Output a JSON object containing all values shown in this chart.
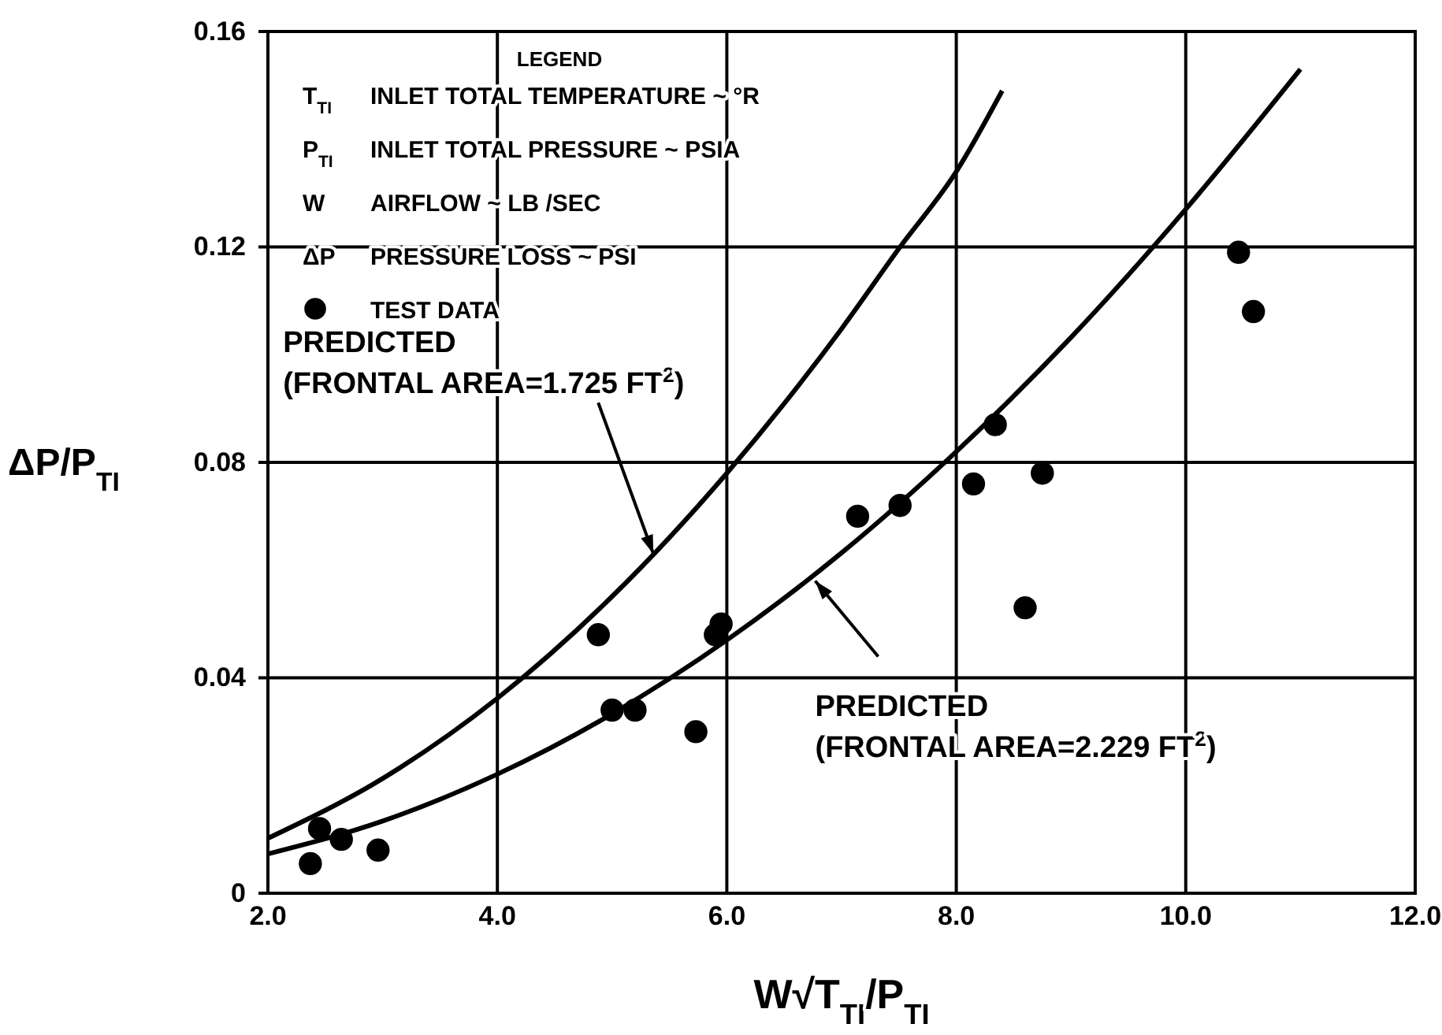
{
  "chart_data": {
    "type": "scatter",
    "xlabel": "W√T$_{TI}$/P$_{TI}$",
    "ylabel": "ΔP/P$_{TI}$",
    "legend_title": "LEGEND",
    "xlim": [
      2.0,
      12.0
    ],
    "ylim": [
      0,
      0.16
    ],
    "xticks": [
      {
        "value": 2,
        "label": "2.0"
      },
      {
        "value": 4,
        "label": "4.0"
      },
      {
        "value": 6,
        "label": "6.0"
      },
      {
        "value": 8,
        "label": "8.0"
      },
      {
        "value": 10,
        "label": "10.0"
      },
      {
        "value": 12,
        "label": "12.0"
      }
    ],
    "yticks": [
      0,
      0.04,
      0.08,
      0.12,
      0.16
    ],
    "grid": true,
    "legend": "top left",
    "marker": "circle",
    "series": [
      {
        "name": "TEST DATA",
        "color": "#000000",
        "x": [
          2.37,
          2.45,
          2.64,
          2.96,
          4.88,
          5.0,
          5.2,
          5.73,
          5.9,
          5.95,
          7.14,
          7.51,
          8.15,
          8.34,
          8.6,
          8.75,
          10.46,
          10.59
        ],
        "values": [
          0.0055,
          0.012,
          0.01,
          0.008,
          0.048,
          0.034,
          0.034,
          0.03,
          0.048,
          0.05,
          0.07,
          0.072,
          0.076,
          0.087,
          0.053,
          0.078,
          0.119,
          0.108
        ]
      },
      {
        "type": "line",
        "marker": "none",
        "color": "#000000",
        "x": [
          2,
          3,
          4,
          5,
          6,
          7,
          7.5,
          8,
          8.4
        ],
        "values": [
          0.0102,
          0.0213,
          0.0362,
          0.0551,
          0.078,
          0.1048,
          0.1197,
          0.134,
          0.149
        ]
      },
      {
        "type": "line",
        "marker": "none",
        "color": "#000000",
        "x": [
          2,
          3,
          4,
          5,
          6,
          7,
          8,
          9,
          10,
          11
        ],
        "values": [
          0.0073,
          0.0134,
          0.0221,
          0.0333,
          0.047,
          0.0632,
          0.082,
          0.1032,
          0.127,
          0.153
        ]
      }
    ],
    "annotations": [
      "T$_{TI}$   INLET  TOTAL  TEMPERATURE ~ °R",
      "P$_{TI}$   INLET  TOTAL  PRESSURE ~ PSIA",
      "W   AIRFLOW ~ LB /SEC",
      "ΔP   PRESSURE LOSS ~ PSI",
      {
        "text": "PREDICTED\n(FRONTAL  AREA=1.725  FT$^{2}$)",
        "x": 5.36,
        "y": 0.063
      },
      {
        "text": "PREDICTED\n(FRONTAL  AREA=2.229  FT$^{2}$)",
        "x": 6.77,
        "y": 0.058
      }
    ]
  }
}
